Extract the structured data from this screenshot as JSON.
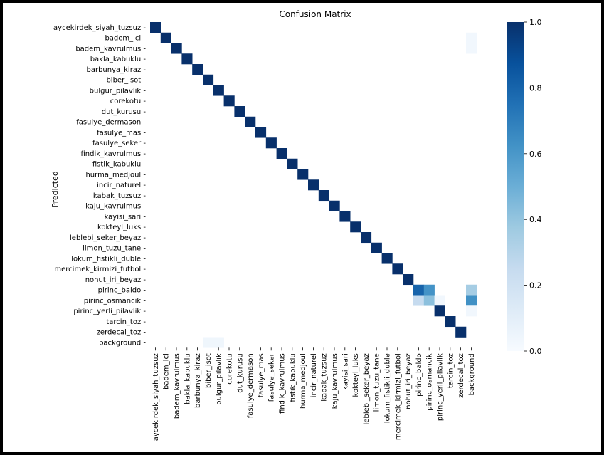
{
  "chart_data": {
    "type": "heatmap",
    "title": "Confusion Matrix",
    "ylabel": "Predicted",
    "xlabel": "",
    "labels": [
      "aycekirdek_siyah_tuzsuz",
      "badem_ici",
      "badem_kavrulmus",
      "bakla_kabuklu",
      "barbunya_kiraz",
      "biber_isot",
      "bulgur_pilavlik",
      "corekotu",
      "dut_kurusu",
      "fasulye_dermason",
      "fasulye_mas",
      "fasulye_seker",
      "findik_kavrulmus",
      "fistik_kabuklu",
      "hurma_medjoul",
      "incir_naturel",
      "kabak_tuzsuz",
      "kaju_kavrulmus",
      "kayisi_sari",
      "kokteyl_luks",
      "leblebi_seker_beyaz",
      "limon_tuzu_tane",
      "lokum_fistikli_duble",
      "mercimek_kirmizi_futbol",
      "nohut_iri_beyaz",
      "pirinc_baldo",
      "pirinc_osmancik",
      "pirinc_yerli_pilavlik",
      "tarcin_toz",
      "zerdecal_toz",
      "background"
    ],
    "off_diagonal": [
      {
        "row": "badem_ici",
        "col": "background",
        "value": 0.03
      },
      {
        "row": "badem_kavrulmus",
        "col": "background",
        "value": 0.03
      },
      {
        "row": "pirinc_baldo",
        "col": "pirinc_osmancik",
        "value": 0.62
      },
      {
        "row": "pirinc_baldo",
        "col": "background",
        "value": 0.35
      },
      {
        "row": "pirinc_osmancik",
        "col": "pirinc_baldo",
        "value": 0.25
      },
      {
        "row": "pirinc_osmancik",
        "col": "pirinc_osmancik",
        "value": 0.42
      },
      {
        "row": "pirinc_osmancik",
        "col": "pirinc_yerli_pilavlik",
        "value": 0.03
      },
      {
        "row": "pirinc_osmancik",
        "col": "background",
        "value": 0.63
      },
      {
        "row": "pirinc_yerli_pilavlik",
        "col": "background",
        "value": 0.03
      },
      {
        "row": "background",
        "col": "biber_isot",
        "value": 0.04
      },
      {
        "row": "background",
        "col": "bulgur_pilavlik",
        "value": 0.04
      }
    ],
    "pirinc_baldo_diagonal": 0.8,
    "colorbar": {
      "min": 0.0,
      "max": 1.0,
      "ticks": [
        "0.0",
        "0.2",
        "0.4",
        "0.6",
        "0.8",
        "1.0"
      ]
    },
    "colormap": {
      "low": "#f7fbff",
      "high": "#08306b"
    },
    "grid": false
  }
}
